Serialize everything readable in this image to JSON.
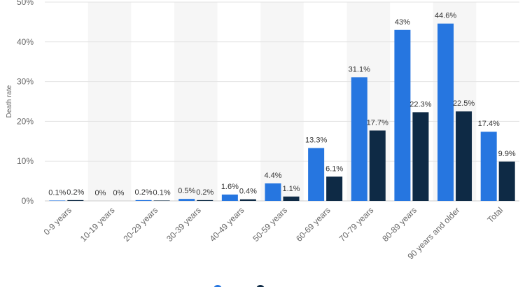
{
  "chart_data": {
    "type": "bar",
    "ylabel": "Death rate",
    "y_unit": "%",
    "ylim": [
      0,
      50
    ],
    "yticks": [
      "0%",
      "10%",
      "20%",
      "30%",
      "40%",
      "50%"
    ],
    "grid": true,
    "legend": "bottom-center",
    "categories": [
      "0-9 years",
      "10-19 years",
      "20-29 years",
      "30-39 years",
      "40-49 years",
      "50-59 years",
      "60-69 years",
      "70-79 years",
      "80-89 years",
      "90 years and older",
      "Total"
    ],
    "series": [
      {
        "color": "#2676e0",
        "values": [
          0.1,
          0,
          0.2,
          0.5,
          1.6,
          4.4,
          13.3,
          31.1,
          43,
          44.6,
          17.4
        ],
        "labels": [
          "0.1%",
          "0%",
          "0.2%",
          "0.5%",
          "1.6%",
          "4.4%",
          "13.3%",
          "31.1%",
          "43%",
          "44.6%",
          "17.4%"
        ]
      },
      {
        "color": "#0e2a45",
        "values": [
          0.2,
          0,
          0.1,
          0.2,
          0.4,
          1.1,
          6.1,
          17.7,
          22.3,
          22.5,
          9.9
        ],
        "labels": [
          "0.2%",
          "0%",
          "0.1%",
          "0.2%",
          "0.4%",
          "1.1%",
          "6.1%",
          "17.7%",
          "22.3%",
          "22.5%",
          "9.9%"
        ]
      }
    ]
  }
}
